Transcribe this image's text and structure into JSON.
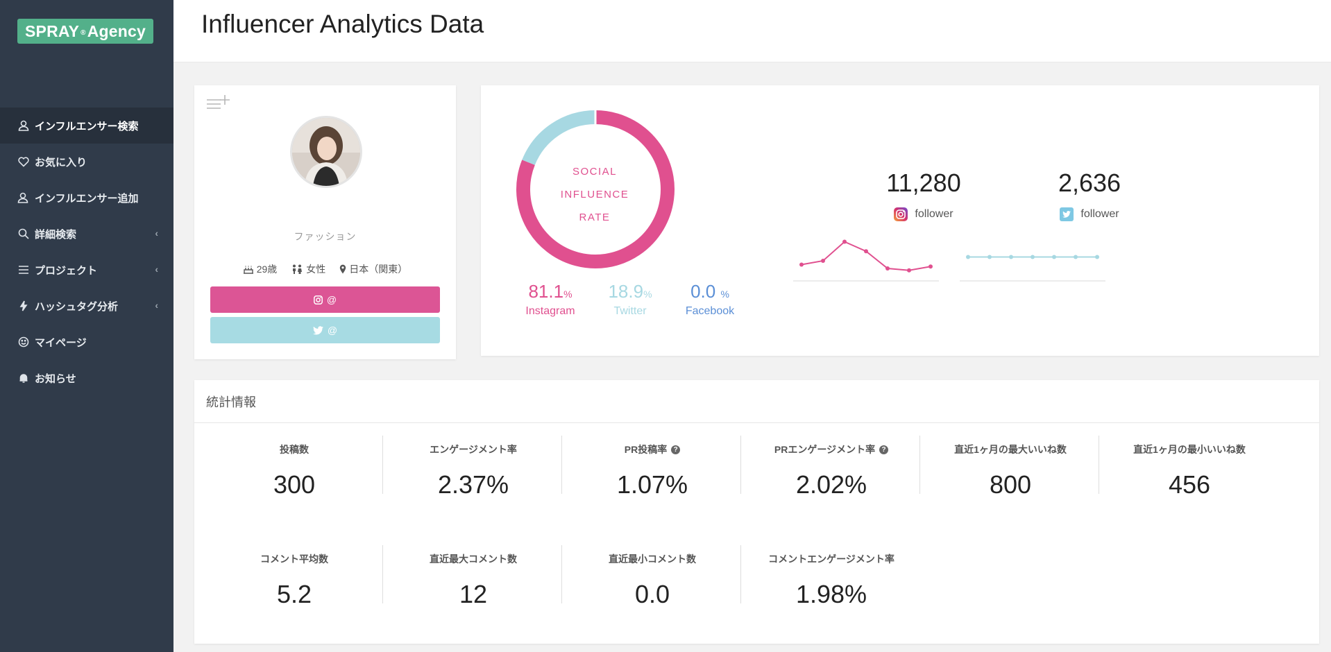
{
  "sidebar": {
    "logo": {
      "text_left": "SPRAY",
      "reg": "®",
      "text_right": "Agency"
    },
    "items": [
      {
        "label": "インフルエンサー検索",
        "icon": "user-icon",
        "active": true,
        "chevron": false
      },
      {
        "label": "お気に入り",
        "icon": "heart-icon",
        "active": false,
        "chevron": false
      },
      {
        "label": "インフルエンサー追加",
        "icon": "user-add-icon",
        "active": false,
        "chevron": false
      },
      {
        "label": "詳細検索",
        "icon": "search-icon",
        "active": false,
        "chevron": true
      },
      {
        "label": "プロジェクト",
        "icon": "list-icon",
        "active": false,
        "chevron": true
      },
      {
        "label": "ハッシュタグ分析",
        "icon": "bolt-icon",
        "active": false,
        "chevron": true
      },
      {
        "label": "マイページ",
        "icon": "smile-icon",
        "active": false,
        "chevron": false
      },
      {
        "label": "お知らせ",
        "icon": "bell-icon",
        "active": false,
        "chevron": false
      }
    ],
    "chevron_glyph": "‹"
  },
  "header": {
    "title": "Influencer Analytics Data"
  },
  "profile": {
    "category": "ファッション",
    "age": "29歳",
    "gender": "女性",
    "location": "日本（関東）",
    "instagram_handle": "@",
    "twitter_handle": "@"
  },
  "social": {
    "donut_label": [
      "SOCIAL",
      "INFLUENCE",
      "RATE"
    ],
    "colors": {
      "instagram": "#e0508f",
      "twitter": "#a7d8e2",
      "facebook": "#5b8fd6"
    },
    "shares": [
      {
        "name": "Instagram",
        "value": "81.1",
        "unit": "%"
      },
      {
        "name": "Twitter",
        "value": "18.9",
        "unit": "%"
      },
      {
        "name": "Facebook",
        "value": "0.0",
        "unit": "%"
      }
    ],
    "instagram": {
      "followers": "11,280",
      "label": "follower",
      "trend": [
        3,
        4,
        9,
        6.5,
        2,
        1.5,
        2.5
      ]
    },
    "twitter": {
      "followers": "2,636",
      "label": "follower",
      "trend": [
        5,
        5,
        5,
        5,
        5,
        5,
        5
      ]
    }
  },
  "chart_data": {
    "type": "pie",
    "categories": [
      "Instagram",
      "Twitter",
      "Facebook"
    ],
    "values": [
      81.1,
      18.9,
      0.0
    ]
  },
  "stats": {
    "title": "統計情報",
    "row1": [
      {
        "label": "投稿数",
        "value": "300",
        "help": false
      },
      {
        "label": "エンゲージメント率",
        "value": "2.37%",
        "help": false
      },
      {
        "label": "PR投稿率",
        "value": "1.07%",
        "help": true
      },
      {
        "label": "PRエンゲージメント率",
        "value": "2.02%",
        "help": true
      },
      {
        "label": "直近1ヶ月の最大いいね数",
        "value": "800",
        "help": false
      },
      {
        "label": "直近1ヶ月の最小いいね数",
        "value": "456",
        "help": false
      }
    ],
    "row2": [
      {
        "label": "コメント平均数",
        "value": "5.2",
        "help": false
      },
      {
        "label": "直近最大コメント数",
        "value": "12",
        "help": false
      },
      {
        "label": "直近最小コメント数",
        "value": "0.0",
        "help": false
      },
      {
        "label": "コメントエンゲージメント率",
        "value": "1.98%",
        "help": false
      }
    ],
    "help_glyph": "?"
  }
}
